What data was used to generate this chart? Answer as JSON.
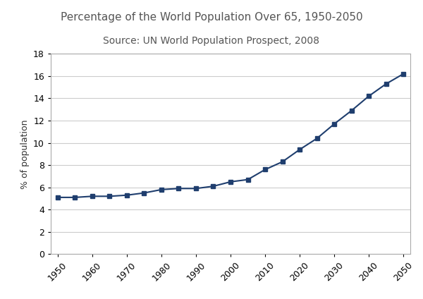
{
  "title": "Percentage of the World Population Over 65, 1950-2050",
  "subtitle": "Source: UN World Population Prospect, 2008",
  "ylabel": "% of population",
  "years": [
    1950,
    1955,
    1960,
    1965,
    1970,
    1975,
    1980,
    1985,
    1990,
    1995,
    2000,
    2005,
    2010,
    2015,
    2020,
    2025,
    2030,
    2035,
    2040,
    2045,
    2050
  ],
  "values": [
    5.1,
    5.1,
    5.2,
    5.2,
    5.3,
    5.5,
    5.8,
    5.9,
    5.9,
    6.1,
    6.5,
    6.7,
    7.6,
    8.3,
    9.4,
    10.4,
    11.7,
    12.9,
    14.2,
    15.3,
    16.2
  ],
  "line_color": "#1F3E6E",
  "marker": "s",
  "marker_size": 4,
  "xlim": [
    1948,
    2052
  ],
  "ylim": [
    0,
    18
  ],
  "yticks": [
    0,
    2,
    4,
    6,
    8,
    10,
    12,
    14,
    16,
    18
  ],
  "xticks": [
    1950,
    1960,
    1970,
    1980,
    1990,
    2000,
    2010,
    2020,
    2030,
    2040,
    2050
  ],
  "grid_color": "#cccccc",
  "bg_color": "#ffffff",
  "title_color": "#555555",
  "title_fontsize": 11,
  "subtitle_fontsize": 10,
  "label_fontsize": 9,
  "tick_fontsize": 9
}
